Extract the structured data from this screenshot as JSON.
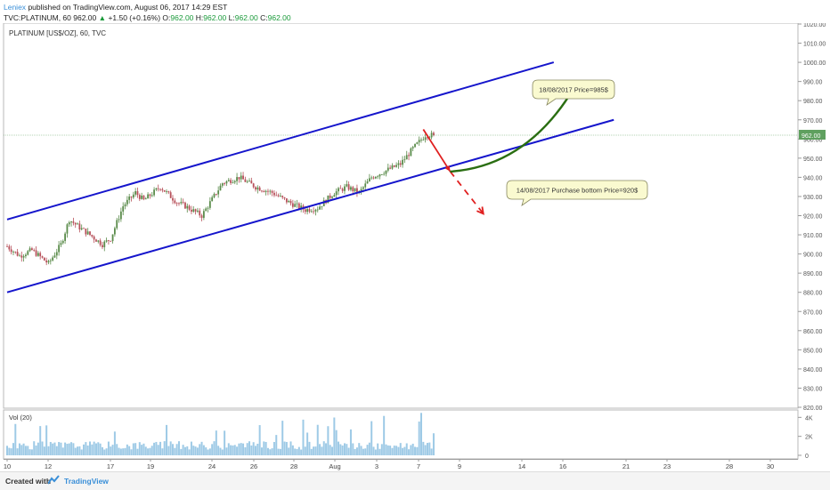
{
  "header": {
    "user": "Leniex",
    "published": "published on TradingView.com, August 06, 2017 14:29 EST",
    "symbol": "TVC:PLATINUM, 60",
    "last": "962.00",
    "arrow": "▲",
    "change": "+1.50 (+0.16%)",
    "o_label": "O:",
    "o": "962.00",
    "h_label": "H:",
    "h": "962.00",
    "l_label": "L:",
    "l": "962.00",
    "c_label": "C:",
    "c": "962.00"
  },
  "chart_data": {
    "type": "candlestick",
    "title": "PLATINUM [US$/OZ], 60, TVC",
    "ylim": [
      820,
      1020
    ],
    "y_ticks": [
      "820.00",
      "830.00",
      "840.00",
      "850.00",
      "860.00",
      "870.00",
      "880.00",
      "890.00",
      "900.00",
      "910.00",
      "920.00",
      "930.00",
      "940.00",
      "950.00",
      "960.00",
      "970.00",
      "980.00",
      "990.00",
      "1000.00",
      "1010.00",
      "1020.00"
    ],
    "x_tick_labels": [
      "10",
      "12",
      "17",
      "19",
      "24",
      "26",
      "28",
      "Aug",
      "3",
      "7",
      "9",
      "14",
      "16",
      "21",
      "23",
      "28",
      "30"
    ],
    "last_price_label": "962.00",
    "price_path": [
      {
        "x": 0,
        "y": 904
      },
      {
        "x": 6,
        "y": 899
      },
      {
        "x": 12,
        "y": 902
      },
      {
        "x": 20,
        "y": 895
      },
      {
        "x": 26,
        "y": 905
      },
      {
        "x": 30,
        "y": 918
      },
      {
        "x": 36,
        "y": 913
      },
      {
        "x": 40,
        "y": 910
      },
      {
        "x": 46,
        "y": 905
      },
      {
        "x": 50,
        "y": 908
      },
      {
        "x": 56,
        "y": 925
      },
      {
        "x": 62,
        "y": 932
      },
      {
        "x": 66,
        "y": 928
      },
      {
        "x": 74,
        "y": 935
      },
      {
        "x": 82,
        "y": 927
      },
      {
        "x": 86,
        "y": 925
      },
      {
        "x": 94,
        "y": 920
      },
      {
        "x": 104,
        "y": 937
      },
      {
        "x": 112,
        "y": 940
      },
      {
        "x": 120,
        "y": 935
      },
      {
        "x": 128,
        "y": 932
      },
      {
        "x": 136,
        "y": 927
      },
      {
        "x": 144,
        "y": 923
      },
      {
        "x": 150,
        "y": 924
      },
      {
        "x": 158,
        "y": 932
      },
      {
        "x": 164,
        "y": 935
      },
      {
        "x": 170,
        "y": 932
      },
      {
        "x": 176,
        "y": 940
      },
      {
        "x": 184,
        "y": 944
      },
      {
        "x": 190,
        "y": 947
      },
      {
        "x": 196,
        "y": 955
      },
      {
        "x": 202,
        "y": 962
      },
      {
        "x": 206,
        "y": 962
      }
    ],
    "price_path_units": "x = hours from the first bar (Jul 10 00:00); y = price in US$/OZ",
    "volume": {
      "label": "Vol (20)",
      "ticks": [
        "4K",
        "2K",
        "0"
      ],
      "ylim": [
        0,
        4500
      ]
    },
    "trend_lines": [
      {
        "name": "channel-upper",
        "color": "#1515cc",
        "from": {
          "x": 0,
          "y": 918
        },
        "to": {
          "x": 264,
          "y": 1000
        }
      },
      {
        "name": "channel-lower",
        "color": "#1515cc",
        "from": {
          "x": 0,
          "y": 880
        },
        "to": {
          "x": 293,
          "y": 970
        }
      },
      {
        "name": "drop-arrow",
        "color": "#e02020",
        "from": {
          "x": 201,
          "y": 965
        },
        "to": {
          "x": 214,
          "y": 943
        }
      },
      {
        "name": "dashed-down-arrow",
        "color": "#e02020",
        "dashed": true,
        "from": {
          "x": 214,
          "y": 943
        },
        "to": {
          "x": 230,
          "y": 921
        }
      },
      {
        "name": "up-curve-arrow",
        "color": "#2a6e12",
        "from": {
          "x": 214,
          "y": 943
        },
        "to": {
          "x": 274,
          "y": 987
        }
      }
    ],
    "callouts": [
      {
        "text": "18/08/2017 Price=985$"
      },
      {
        "text": "14/08/2017 Purchase bottom Price=920$"
      }
    ]
  },
  "footer": {
    "created": "Created with",
    "brand": "TradingView"
  },
  "colors": {
    "channel": "#1515cc",
    "red_arrow": "#e02020",
    "green_arrow": "#2a6e12",
    "up_candle": "#5a8b4a",
    "down_candle": "#b7505a",
    "volume": "#9ecae6",
    "callout_bg": "#fafad0",
    "callout_border": "#888860"
  }
}
